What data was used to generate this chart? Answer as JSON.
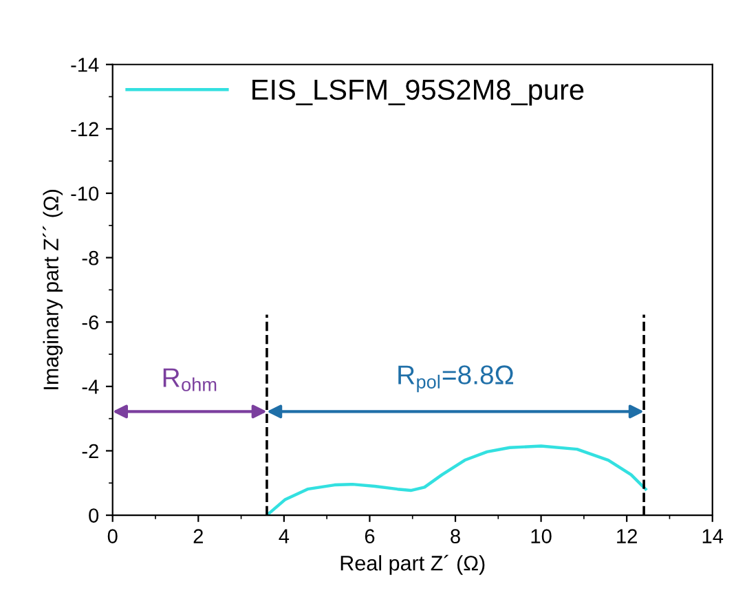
{
  "chart_data": {
    "type": "line",
    "xlabel": "Real part Z´ (Ω)",
    "ylabel": "Imaginary part Z´´ (Ω)",
    "xlim": [
      0,
      14
    ],
    "xticks": [
      0,
      2,
      4,
      6,
      8,
      10,
      12,
      14
    ],
    "ylim": [
      0,
      -14
    ],
    "yticks": [
      0,
      -2,
      -4,
      -6,
      -8,
      -10,
      -12,
      -14
    ],
    "series": [
      {
        "name": "EIS_LSFM_95S2M8_pure",
        "color": "#33e0e0",
        "x": [
          3.6,
          4.03,
          4.55,
          5.18,
          5.6,
          6.12,
          6.65,
          6.96,
          7.28,
          7.69,
          8.22,
          8.74,
          9.27,
          10.0,
          10.84,
          11.57,
          12.1,
          12.44
        ],
        "values": [
          0,
          -0.49,
          -0.81,
          -0.94,
          -0.96,
          -0.9,
          -0.81,
          -0.77,
          -0.87,
          -1.26,
          -1.71,
          -1.97,
          -2.1,
          -2.15,
          -2.05,
          -1.71,
          -1.26,
          -0.81
        ]
      }
    ],
    "ref_lines": [
      {
        "axis": "x",
        "value": 3.6,
        "color": "#000000",
        "line_style": "dashed"
      },
      {
        "axis": "x",
        "value": 12.4,
        "color": "#000000",
        "line_style": "dashed"
      }
    ],
    "annotations": [
      "R$_{ohm}$",
      "R$_{pol}$=8.8Ω"
    ],
    "legend": "top left",
    "grid": false,
    "marker": "none",
    "line_style": "solid"
  }
}
